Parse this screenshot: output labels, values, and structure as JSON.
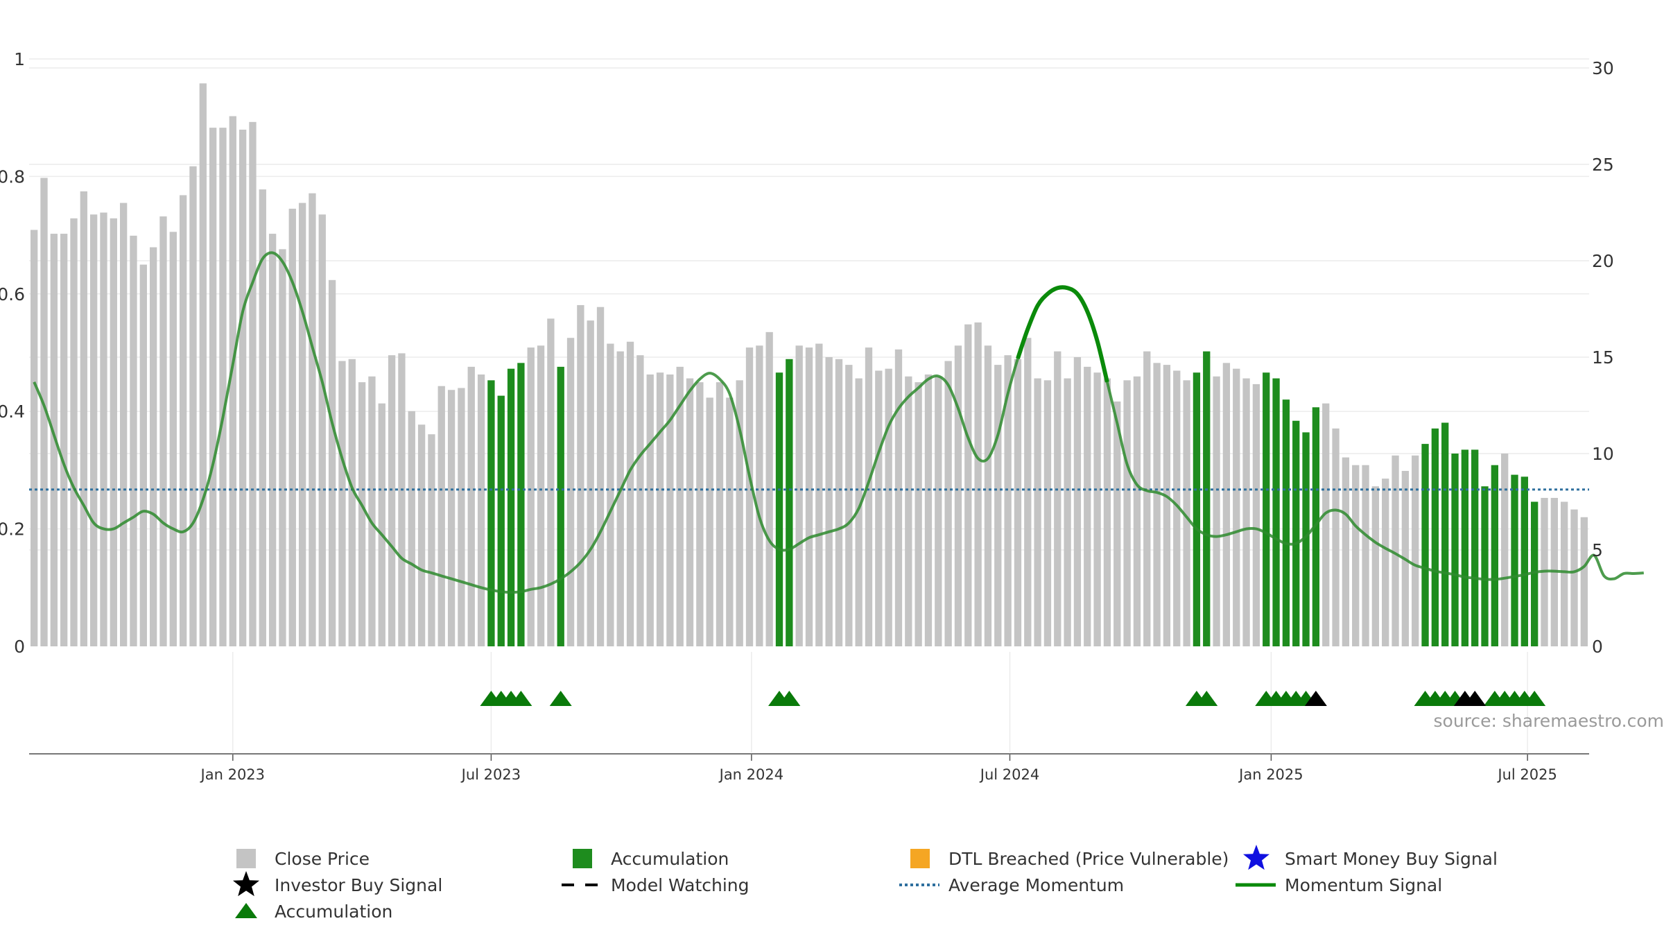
{
  "chart_data": {
    "type": "bar",
    "title": "",
    "xlabel": "",
    "ylabel": "",
    "left_axis": {
      "ylim": [
        0,
        1
      ],
      "ticks": [
        "0",
        "0.2",
        "0.4",
        "0.6",
        "0.8",
        "1"
      ]
    },
    "right_axis": {
      "ylim": [
        0,
        30
      ],
      "ticks": [
        "0",
        "5",
        "10",
        "15",
        "20",
        "25",
        "30"
      ]
    },
    "x_ticks": [
      "Jan 2023",
      "Jul 2023",
      "Jan 2024",
      "Jul 2024",
      "Jan 2025",
      "Jul 2025"
    ],
    "grid": true,
    "bars": {
      "name": "Close Price",
      "values": [
        21.6,
        24.3,
        21.4,
        21.4,
        22.2,
        23.6,
        22.4,
        22.5,
        22.2,
        23.0,
        21.3,
        19.8,
        20.7,
        22.3,
        21.5,
        23.4,
        24.9,
        29.2,
        26.9,
        26.9,
        27.5,
        26.8,
        27.2,
        23.7,
        21.4,
        20.6,
        22.7,
        23.0,
        23.5,
        22.4,
        19.0,
        14.8,
        14.9,
        13.7,
        14.0,
        12.6,
        15.1,
        15.2,
        12.2,
        11.5,
        11.0,
        13.5,
        13.3,
        13.4,
        14.5,
        14.1,
        13.8,
        13.0,
        14.4,
        14.7,
        15.5,
        15.6,
        17.0,
        14.5,
        16.0,
        17.7,
        16.9,
        17.6,
        15.7,
        15.3,
        15.8,
        15.1,
        14.1,
        14.2,
        14.1,
        14.5,
        13.9,
        13.7,
        12.9,
        13.7,
        12.9,
        13.8,
        15.5,
        15.6,
        16.3,
        14.2,
        14.9,
        15.6,
        15.5,
        15.7,
        15.0,
        14.9,
        14.6,
        13.9,
        15.5,
        14.3,
        14.4,
        15.4,
        14.0,
        13.7,
        14.1,
        14.0,
        14.8,
        15.6,
        16.7,
        16.8,
        15.6,
        14.6,
        15.1,
        14.9,
        16.0,
        13.9,
        13.8,
        15.3,
        13.9,
        15.0,
        14.5,
        14.2,
        13.9,
        12.7,
        13.8,
        14.0,
        15.3,
        14.7,
        14.6,
        14.3,
        13.8,
        14.2,
        15.3,
        14.0,
        14.7,
        14.4,
        13.9,
        13.6,
        14.2,
        13.9,
        12.8,
        11.7,
        11.1,
        12.4,
        12.6,
        11.3,
        9.8,
        9.4,
        9.4,
        8.3,
        8.7,
        9.9,
        9.1,
        9.9,
        10.5,
        11.3,
        11.6,
        10.0,
        10.2,
        10.2,
        8.3,
        9.4,
        10.0,
        8.9,
        8.8,
        7.5,
        7.7,
        7.7,
        7.5,
        7.1,
        6.7
      ],
      "accumulation_indices": [
        46,
        47,
        48,
        49,
        53,
        75,
        76,
        117,
        118,
        124,
        125,
        126,
        127,
        128,
        129,
        140,
        141,
        142,
        143,
        144,
        145,
        146,
        147,
        149,
        150,
        151
      ]
    },
    "series": [
      {
        "name": "Momentum Signal",
        "values": [
          0.45,
          0.41,
          0.36,
          0.31,
          0.27,
          0.24,
          0.21,
          0.2,
          0.2,
          0.21,
          0.22,
          0.23,
          0.225,
          0.21,
          0.2,
          0.195,
          0.21,
          0.25,
          0.31,
          0.39,
          0.48,
          0.57,
          0.62,
          0.66,
          0.67,
          0.655,
          0.62,
          0.57,
          0.51,
          0.45,
          0.38,
          0.32,
          0.27,
          0.24,
          0.21,
          0.19,
          0.17,
          0.15,
          0.14,
          0.13,
          0.125,
          0.12,
          0.115,
          0.11,
          0.105,
          0.1,
          0.096,
          0.093,
          0.092,
          0.093,
          0.097,
          0.1,
          0.106,
          0.115,
          0.127,
          0.143,
          0.165,
          0.195,
          0.23,
          0.265,
          0.3,
          0.325,
          0.345,
          0.365,
          0.385,
          0.41,
          0.435,
          0.455,
          0.465,
          0.455,
          0.43,
          0.37,
          0.29,
          0.22,
          0.18,
          0.165,
          0.165,
          0.175,
          0.185,
          0.19,
          0.195,
          0.2,
          0.21,
          0.235,
          0.28,
          0.33,
          0.375,
          0.405,
          0.425,
          0.44,
          0.455,
          0.46,
          0.445,
          0.405,
          0.355,
          0.32,
          0.32,
          0.36,
          0.43,
          0.49,
          0.54,
          0.58,
          0.6,
          0.61,
          0.61,
          0.6,
          0.57,
          0.52,
          0.45,
          0.38,
          0.31,
          0.275,
          0.265,
          0.262,
          0.255,
          0.24,
          0.22,
          0.2,
          0.19,
          0.187,
          0.19,
          0.195,
          0.2,
          0.2,
          0.193,
          0.183,
          0.175,
          0.175,
          0.187,
          0.207,
          0.227,
          0.232,
          0.225,
          0.205,
          0.19,
          0.177,
          0.167,
          0.158,
          0.148,
          0.138,
          0.133,
          0.128,
          0.125,
          0.122,
          0.118,
          0.116,
          0.114,
          0.114,
          0.116,
          0.119,
          0.122,
          0.126,
          0.128,
          0.128,
          0.127,
          0.127,
          0.136,
          0.155,
          0.12,
          0.115,
          0.124,
          0.124,
          0.125
        ]
      },
      {
        "name": "Average Momentum",
        "value": 0.267
      }
    ],
    "events": {
      "accumulation_markers": [
        46,
        47,
        48,
        49,
        53,
        75,
        76,
        117,
        118,
        124,
        125,
        126,
        127,
        128,
        140,
        141,
        142,
        143,
        147,
        148,
        149,
        150,
        151
      ],
      "investor_buy_signals": [
        129,
        144,
        145
      ]
    },
    "legend": {
      "placement": "bottom-center",
      "entries": [
        {
          "label": "Close Price",
          "symbol": "square",
          "color": "#c4c4c4"
        },
        {
          "label": "Accumulation",
          "symbol": "square",
          "color": "#1e8c1e"
        },
        {
          "label": "DTL Breached (Price Vulnerable)",
          "symbol": "square",
          "color": "#f5a623"
        },
        {
          "label": "Smart Money Buy Signal",
          "symbol": "star",
          "color": "#1010e0"
        },
        {
          "label": "Investor Buy Signal",
          "symbol": "star",
          "color": "#000000"
        },
        {
          "label": "Model Watching",
          "symbol": "dash",
          "color": "#000000"
        },
        {
          "label": "Average Momentum",
          "symbol": "dotted",
          "color": "#2e6f9e"
        },
        {
          "label": "Momentum Signal",
          "symbol": "line",
          "color": "#0a8a0a"
        },
        {
          "label": "Accumulation",
          "symbol": "triangle",
          "color": "#0a7a0a"
        }
      ]
    }
  },
  "source_label": "source: sharemaestro.com",
  "colors": {
    "close_bar": "#c4c4c4",
    "accumulation_bar": "#1e8c1e",
    "momentum": "#2e8b2e",
    "momentum_strong": "#0a8a0a",
    "average": "#2e6f9e",
    "marker": "#0a7a0a"
  }
}
